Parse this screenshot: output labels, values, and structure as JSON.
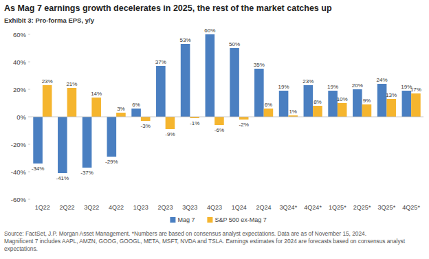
{
  "chart_data": {
    "type": "bar",
    "title": "As Mag 7 earnings growth decelerates in 2025, the rest of the market catches up",
    "subtitle": "Exhibit 3: Pro-forma EPS, y/y",
    "categories": [
      "1Q22",
      "2Q22",
      "3Q22",
      "4Q22",
      "1Q23",
      "2Q23",
      "3Q23",
      "4Q23",
      "1Q24",
      "2Q24",
      "3Q24*",
      "4Q24*",
      "1Q25*",
      "2Q25*",
      "3Q25*",
      "4Q25*"
    ],
    "series": [
      {
        "name": "Mag 7",
        "color": "#4a7fc1",
        "values": [
          -34,
          -41,
          -37,
          -29,
          6,
          37,
          53,
          60,
          50,
          35,
          19,
          23,
          19,
          20,
          24,
          19
        ],
        "value_labels": [
          "-34%",
          "-41%",
          "-37%",
          "-29%",
          "6%",
          "37%",
          "53%",
          "60%",
          "50%",
          "35%",
          "19%",
          "23%",
          "19%",
          "20%",
          "24%",
          "19%"
        ]
      },
      {
        "name": "S&P 500 ex-Mag 7",
        "color": "#f5b52e",
        "values": [
          23,
          21,
          14,
          3,
          -3,
          -9,
          -1,
          -6,
          -2,
          6,
          1,
          8,
          10,
          9,
          13,
          17
        ],
        "value_labels": [
          "23%",
          "21%",
          "14%",
          "3%",
          "-3%",
          "-9%",
          "-1%",
          "-6%",
          "-2%",
          "6%",
          "1%",
          "8%",
          "10%",
          "9%",
          "13%",
          "17%"
        ]
      }
    ],
    "ylim": [
      -60,
      60
    ],
    "yticks": [
      {
        "value": -60,
        "label": "-60%"
      },
      {
        "value": -40,
        "label": "-40%"
      },
      {
        "value": -20,
        "label": "-20%"
      },
      {
        "value": 0,
        "label": "0%"
      },
      {
        "value": 20,
        "label": "20%"
      },
      {
        "value": 40,
        "label": "40%"
      },
      {
        "value": 60,
        "label": "60%"
      }
    ],
    "grid": false,
    "legend": "bottom",
    "data_labels": true,
    "source": [
      "Source: FactSet, J.P. Morgan Asset Management. *Numbers are based on consensus analyst expectations. Data are as of November 15, 2024.",
      "Magnificent 7 includes AAPL, AMZN, GOOG, GOOGL, META, MSFT, NVDA and TSLA. Earnings estimates for 2024 are forecasts based on consensus analyst",
      "expectations."
    ]
  }
}
